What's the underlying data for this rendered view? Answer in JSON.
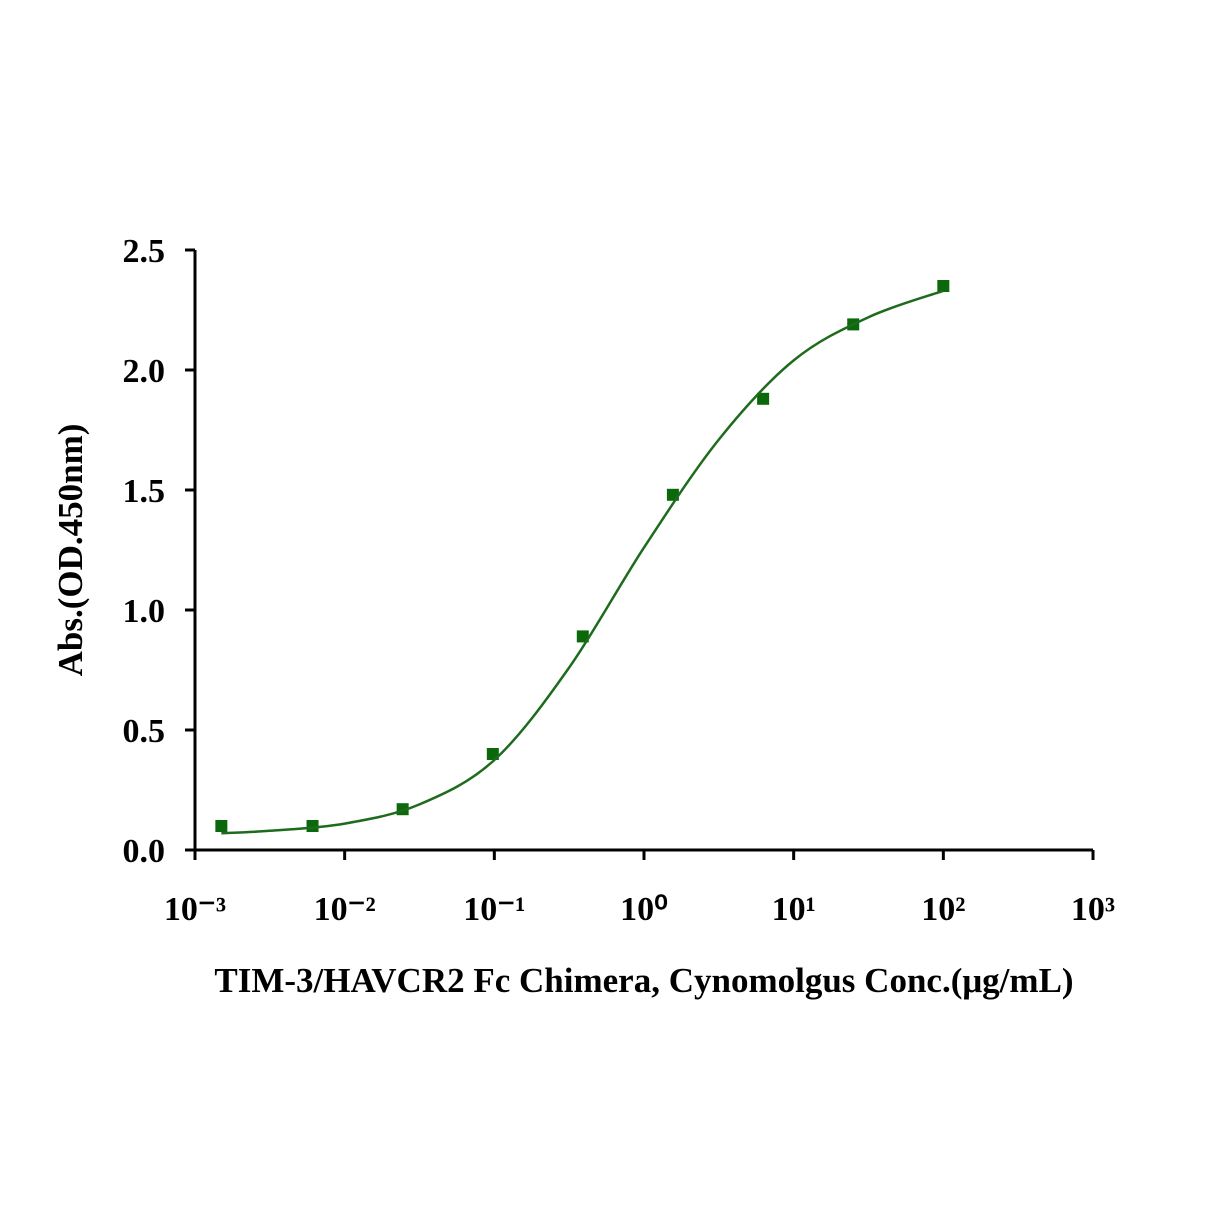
{
  "chart_data": {
    "type": "scatter",
    "x_label": "TIM-3/HAVCR2 Fc Chimera, Cynomolgus Conc.(μg/mL)",
    "y_label": "Abs.(OD.450nm)",
    "x_scale": "log",
    "xlim": [
      0.001,
      1000
    ],
    "xticks": [
      {
        "value": 0.001,
        "label": "10⁻³"
      },
      {
        "value": 0.01,
        "label": "10⁻²"
      },
      {
        "value": 0.1,
        "label": "10⁻¹"
      },
      {
        "value": 1,
        "label": "10⁰"
      },
      {
        "value": 10,
        "label": "10¹"
      },
      {
        "value": 100,
        "label": "10²"
      },
      {
        "value": 1000,
        "label": "10³"
      }
    ],
    "ylim": [
      0,
      2.5
    ],
    "yticks": [
      {
        "value": 0,
        "label": "0.0"
      },
      0.5,
      {
        "value": 1,
        "label": "1.0"
      },
      1.5,
      {
        "value": 2,
        "label": "2.0"
      },
      2.5
    ],
    "series": [
      {
        "color": "#0b690b",
        "x": [
          0.0015,
          0.0061,
          0.0244,
          0.0977,
          0.39,
          1.56,
          6.25,
          25,
          100
        ],
        "values": [
          0.1,
          0.1,
          0.17,
          0.4,
          0.89,
          1.48,
          1.88,
          2.19,
          2.35
        ]
      },
      {
        "kind": "fit-curve",
        "color": "#1e6b1e",
        "x": [
          0.0015,
          0.00316,
          0.01,
          0.0316,
          0.1,
          0.316,
          1,
          3.16,
          10,
          31.6,
          100
        ],
        "values": [
          0.07,
          0.08,
          0.11,
          0.19,
          0.375,
          0.76,
          1.26,
          1.71,
          2.04,
          2.22,
          2.33
        ]
      }
    ]
  }
}
